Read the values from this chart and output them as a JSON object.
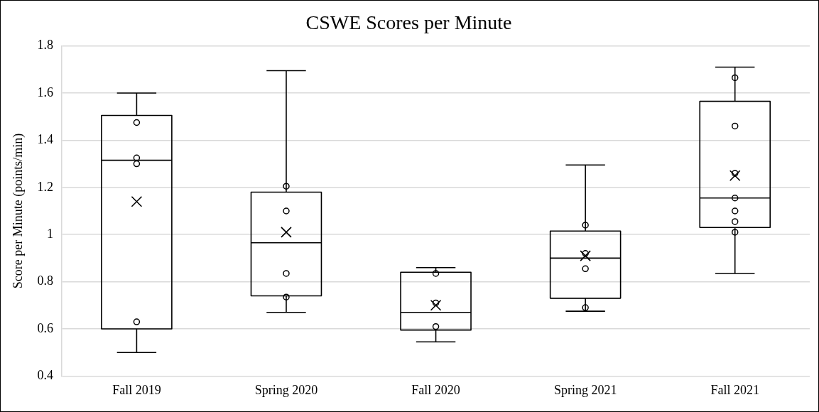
{
  "chart_data": {
    "type": "box",
    "title": "CSWE Scores per Minute",
    "ylabel": "Score per Minute (points/min)",
    "categories": [
      "Fall 2019",
      "Spring 2020",
      "Fall 2020",
      "Spring 2021",
      "Fall 2021"
    ],
    "ylim": [
      0.4,
      1.8
    ],
    "yticks": [
      0.4,
      0.6,
      0.8,
      1,
      1.2,
      1.4,
      1.6,
      1.8
    ],
    "grid": "y",
    "legend": false,
    "series": [
      {
        "type": "box",
        "color": "#000000",
        "boxes": [
          {
            "low": 0.5,
            "q1": 0.6,
            "median": 1.315,
            "q3": 1.505,
            "high": 1.6,
            "mean": 1.14
          },
          {
            "low": 0.67,
            "q1": 0.74,
            "median": 0.965,
            "q3": 1.18,
            "high": 1.695,
            "mean": 1.01
          },
          {
            "low": 0.545,
            "q1": 0.595,
            "median": 0.67,
            "q3": 0.84,
            "high": 0.86,
            "mean": 0.7
          },
          {
            "low": 0.675,
            "q1": 0.73,
            "median": 0.9,
            "q3": 1.015,
            "high": 1.295,
            "mean": 0.91
          },
          {
            "low": 0.835,
            "q1": 1.03,
            "median": 1.155,
            "q3": 1.565,
            "high": 1.71,
            "mean": 1.25
          }
        ]
      },
      {
        "type": "scatter",
        "marker": "circle",
        "color": "#000000",
        "x": [
          "Fall 2019",
          "Fall 2019",
          "Fall 2019",
          "Fall 2019",
          "Spring 2020",
          "Spring 2020",
          "Spring 2020",
          "Spring 2020",
          "Fall 2020",
          "Fall 2020",
          "Fall 2020",
          "Spring 2021",
          "Spring 2021",
          "Spring 2021",
          "Spring 2021",
          "Fall 2021",
          "Fall 2021",
          "Fall 2021",
          "Fall 2021",
          "Fall 2021",
          "Fall 2021",
          "Fall 2021"
        ],
        "values": [
          1.475,
          1.325,
          1.3,
          0.63,
          1.205,
          1.1,
          0.835,
          0.735,
          0.835,
          0.71,
          0.61,
          1.04,
          0.92,
          0.855,
          0.69,
          1.665,
          1.46,
          1.26,
          1.155,
          1.1,
          1.055,
          1.01
        ]
      }
    ]
  }
}
